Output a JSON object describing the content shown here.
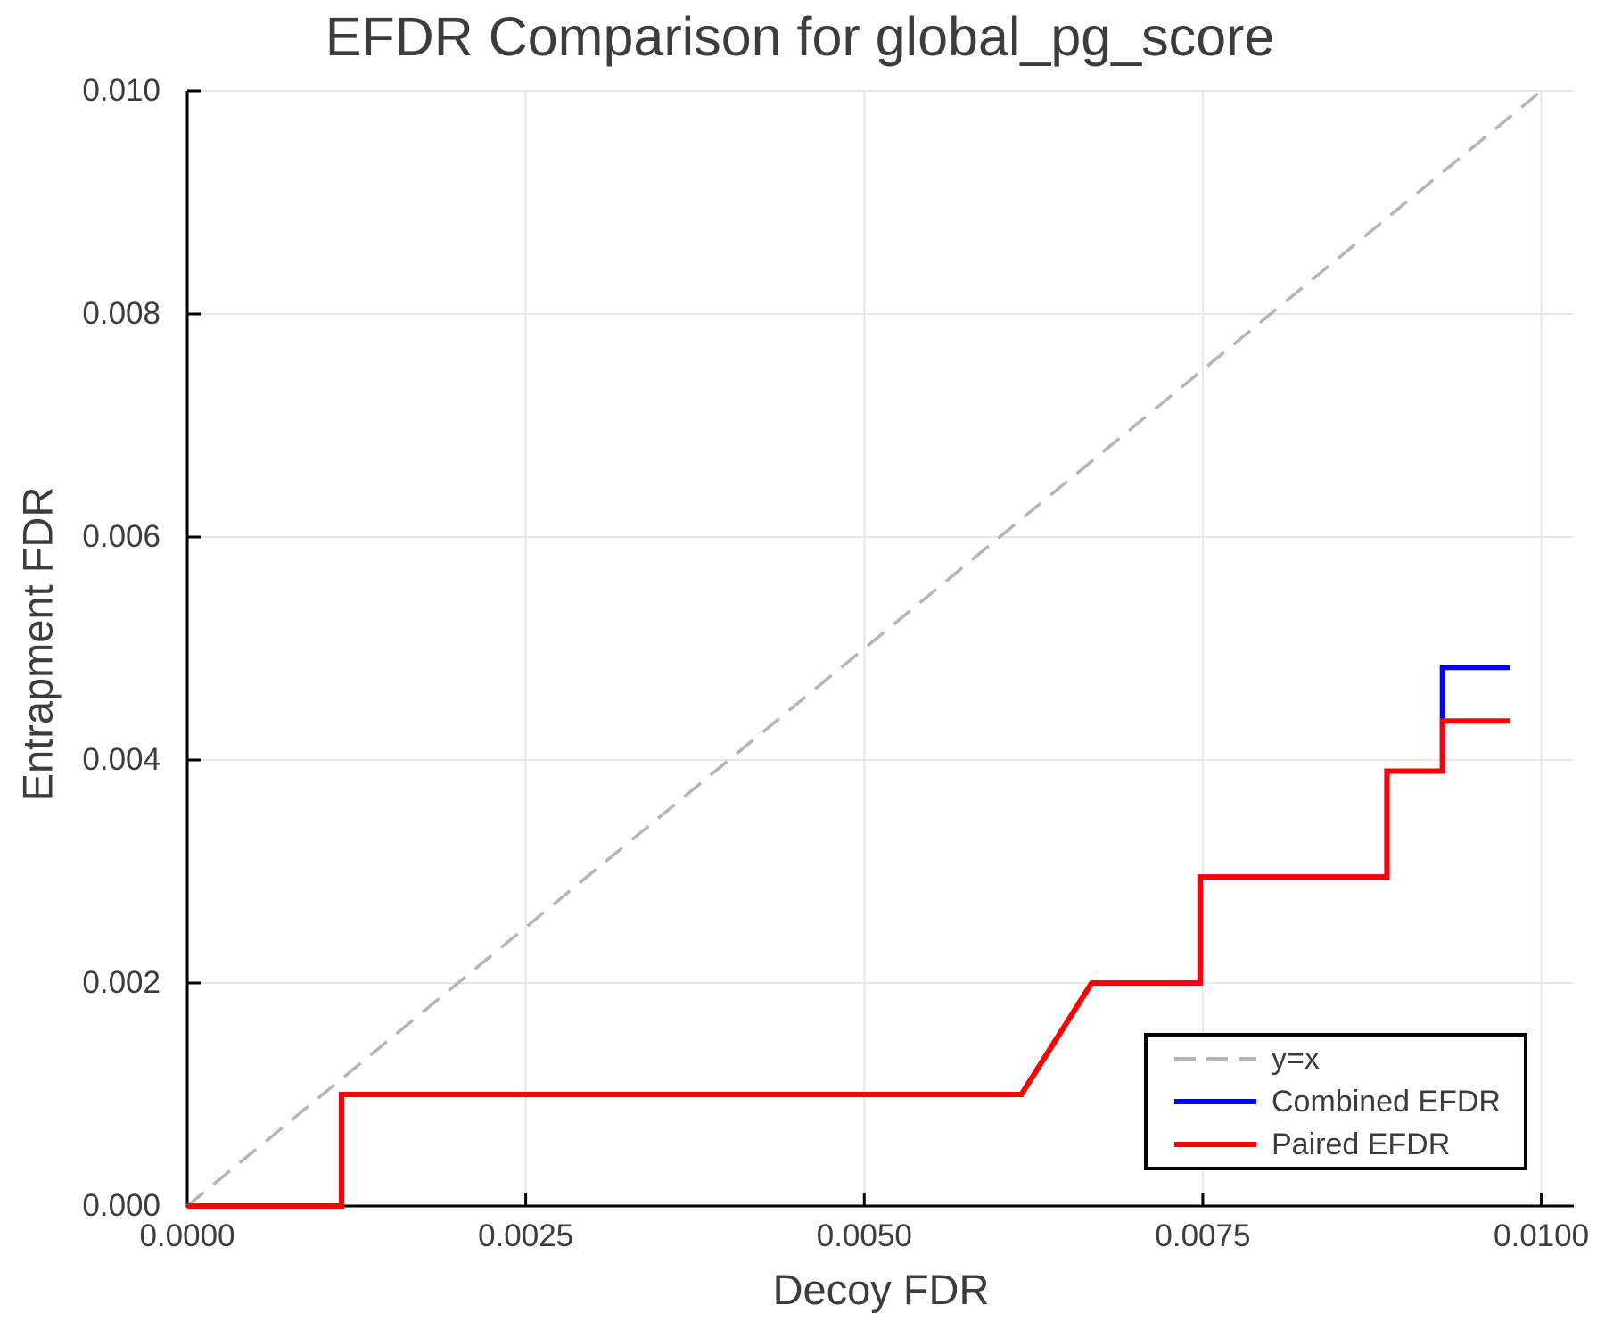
{
  "title": "EFDR Comparison for global_pg_score",
  "chart_data": {
    "type": "line",
    "title": "EFDR Comparison for global_pg_score",
    "xlabel": "Decoy FDR",
    "ylabel": "Entrapment FDR",
    "xlim": [
      0,
      0.01024
    ],
    "ylim": [
      0,
      0.01
    ],
    "grid": true,
    "legend_position": "lower right",
    "x_ticks": {
      "values": [
        0.0,
        0.0025,
        0.005,
        0.0075,
        0.01
      ],
      "labels": [
        "0.0000",
        "0.0025",
        "0.0050",
        "0.0075",
        "0.0100"
      ]
    },
    "y_ticks": {
      "values": [
        0.0,
        0.002,
        0.004,
        0.006,
        0.008,
        0.01
      ],
      "labels": [
        "0.000",
        "0.002",
        "0.004",
        "0.006",
        "0.008",
        "0.010"
      ]
    },
    "series": [
      {
        "name": "y=x",
        "color": "#b5b5b5",
        "style": "dashed",
        "width": 3.5,
        "points": [
          [
            0,
            0
          ],
          [
            0.01,
            0.01
          ]
        ]
      },
      {
        "name": "Combined EFDR",
        "color": "#0000ff",
        "style": "solid",
        "width": 6,
        "points": [
          [
            0,
            0
          ],
          [
            0.00114,
            0
          ],
          [
            0.00114,
            0.001
          ],
          [
            0.00616,
            0.001
          ],
          [
            0.00668,
            0.002
          ],
          [
            0.00748,
            0.002
          ],
          [
            0.00748,
            0.00295
          ],
          [
            0.00886,
            0.00295
          ],
          [
            0.00886,
            0.0039
          ],
          [
            0.00927,
            0.0039
          ],
          [
            0.00927,
            0.00483
          ],
          [
            0.00977,
            0.00483
          ]
        ]
      },
      {
        "name": "Paired EFDR",
        "color": "#ff0000",
        "style": "solid",
        "width": 6,
        "points": [
          [
            0,
            0
          ],
          [
            0.00114,
            0
          ],
          [
            0.00114,
            0.001
          ],
          [
            0.00616,
            0.001
          ],
          [
            0.00668,
            0.002
          ],
          [
            0.00748,
            0.002
          ],
          [
            0.00748,
            0.00295
          ],
          [
            0.00886,
            0.00295
          ],
          [
            0.00886,
            0.0039
          ],
          [
            0.00927,
            0.0039
          ],
          [
            0.00927,
            0.00435
          ],
          [
            0.00977,
            0.00435
          ]
        ]
      }
    ],
    "colors": {
      "text": "#3c3c3c",
      "grid": "#e7e7e7",
      "spine": "#000000",
      "dashed_line": "#b5b5b5",
      "combined": "#0000ff",
      "paired": "#ff0000"
    }
  }
}
